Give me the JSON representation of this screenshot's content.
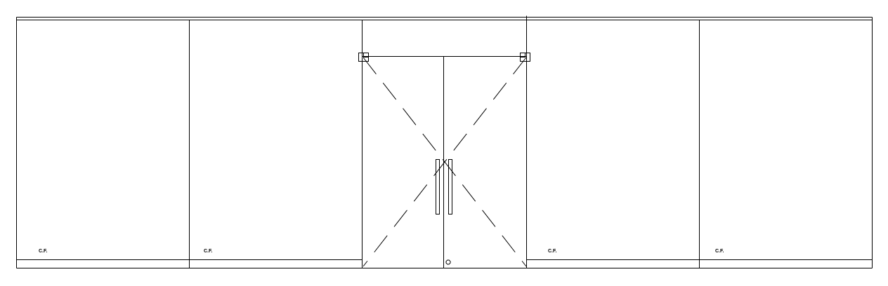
{
  "drawing": {
    "panel_labels": [
      "C.F.",
      "C.F.",
      "C.F.",
      "C.F."
    ],
    "line_color": "#000000",
    "background": "#ffffff"
  }
}
